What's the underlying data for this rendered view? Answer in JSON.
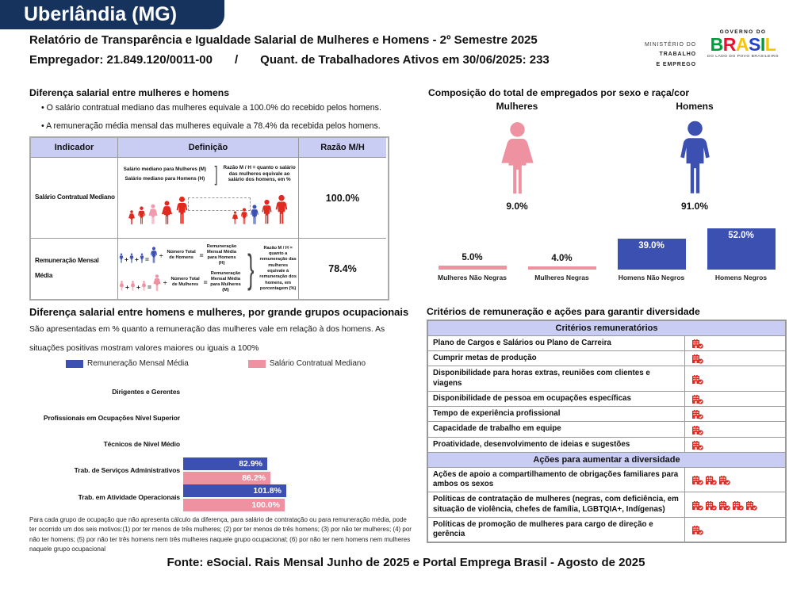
{
  "page": {
    "region_title": "Uberlândia (MG)",
    "report_title": "Relatório de Transparência e Igualdade Salarial de Mulheres e Homens - 2º Semestre 2025",
    "employer_line": "Empregador: 21.849.120/0011-00",
    "separator": "/",
    "workers_line": "Quant. de Trabalhadores Ativos em 30/06/2025: 233",
    "footer_source": "Fonte: eSocial. Rais Mensal Junho de 2025 e Portal Emprega Brasil - Agosto de 2025"
  },
  "logos": {
    "ministry_line1": "MINISTÉRIO DO",
    "ministry_line2": "TRABALHO",
    "ministry_line3": "E EMPREGO",
    "gov_top": "GOVERNO DO",
    "gov_name": "BRASIL",
    "gov_colors": [
      "#009c3b",
      "#e8112d",
      "#f7c600",
      "#2243c8",
      "#009c3b",
      "#f7c600"
    ],
    "gov_bottom": "DO LADO DO POVO BRASILEIRO"
  },
  "colors": {
    "navy": "#16335e",
    "lavender": "#c9cdf3",
    "blue": "#3c50b1",
    "pink": "#ee92a1",
    "pink_light": "#f19ab0",
    "red": "#e02a20"
  },
  "operators": {
    "plus": "+",
    "equals": "=",
    "divide": "÷"
  },
  "glyphs": {
    "bracket": "]",
    "brace": "}"
  },
  "salary_diff": {
    "title": "Diferença salarial entre mulheres e homens",
    "bullets": [
      "O salário contratual mediano das mulheres equivale a 100.0% do recebido pelos homens.",
      "A remuneração média mensal das mulheres equivale a 78.4% da recebida pelos homens."
    ],
    "table": {
      "headers": [
        "Indicador",
        "Definição",
        "Razão M/H"
      ],
      "rows": [
        {
          "indicator": "Salário Contratual Mediano",
          "ratio": "100.0%",
          "def_label_top": "Salário mediano para Mulheres (M)",
          "def_label_bottom": "Salário mediano para Homens (H)",
          "def_note": "Razão M / H = quanto o salário das mulheres equivale ao salário dos homens, em %"
        },
        {
          "indicator": "Remuneração Mensal Média",
          "ratio": "78.4%",
          "calcs": [
            {
              "icon": "man-icon",
              "color": "#3c50b1",
              "divide": "Número Total de Homens",
              "result": "Remuneração Mensal Média para Homens (H)"
            },
            {
              "icon": "woman-icon",
              "color": "#ee92a1",
              "divide": "Número Total de Mulheres",
              "result": "Remuneração Mensal Média para Mulheres (M)"
            }
          ],
          "def_note": "Razão M / H = quanto a remuneração das mulheres equivale à remuneração dos homens, em porcentagem (%)"
        }
      ]
    }
  },
  "composition": {
    "title": "Composição do total de empregados por sexo e raça/cor",
    "female_label": "Mulheres",
    "female_pct": "9.0%",
    "male_label": "Homens",
    "male_pct": "91.0%"
  },
  "occupational": {
    "title": "Diferença salarial entre homens e mulheres, por grande grupos ocupacionais",
    "subtitle": "São apresentadas em % quanto a remuneração das mulheres vale em relação à dos homens. As situações positivas mostram valores maiores ou iguais a 100%",
    "footnote": "Para cada grupo de ocupação que não apresenta cálculo da diferença, para salário de contratação ou para remuneração média, pode ter ocorrido um dos seis motivos:(1) por ter menos de três mulheres; (2) por ter menos de três homens; (3) por não ter mulheres; (4) por não ter homens; (5) por não ter três homens nem três mulheres naquele grupo ocupacional; (6) por não ter nem homens nem mulheres naquele grupo ocupacional"
  },
  "criteria": {
    "title": "Critérios de remuneração e ações para garantir diversidade",
    "sections": [
      {
        "header": "Critérios remuneratórios",
        "rows": [
          {
            "label": "Plano de Cargos e Salários ou Plano de Carreira",
            "icons": 1
          },
          {
            "label": "Cumprir metas de produção",
            "icons": 1
          },
          {
            "label": "Disponibilidade para horas extras, reuniões com clientes e viagens",
            "icons": 1
          },
          {
            "label": "Disponibilidade de pessoa em ocupações específicas",
            "icons": 1
          },
          {
            "label": "Tempo de experiência profissional",
            "icons": 1
          },
          {
            "label": "Capacidade de trabalho em equipe",
            "icons": 1
          },
          {
            "label": "Proatividade, desenvolvimento de ideias e sugestões",
            "icons": 1
          }
        ]
      },
      {
        "header": "Ações para aumentar a diversidade",
        "rows": [
          {
            "label": "Ações de apoio a compartilhamento de obrigações familiares para ambos os sexos",
            "icons": 3
          },
          {
            "label": "Políticas de contratação de mulheres (negras, com deficiência, em situação de violência, chefes de família, LGBTQIA+, Indígenas)",
            "icons": 5
          },
          {
            "label": "Políticas de promoção de mulheres para cargo de direção e gerência",
            "icons": 1
          }
        ]
      }
    ]
  },
  "chart_data": [
    {
      "type": "pictogram",
      "title": "Composição do total de empregados por sexo",
      "categories": [
        "Mulheres",
        "Homens"
      ],
      "values": [
        9.0,
        91.0
      ],
      "unit": "%"
    },
    {
      "type": "bar",
      "title": "Composição do total de empregados por sexo e raça/cor",
      "categories": [
        "Mulheres Não Negras",
        "Mulheres Negras",
        "Homens Não Negros",
        "Homens Negros"
      ],
      "values": [
        5.0,
        4.0,
        39.0,
        52.0
      ],
      "unit": "%",
      "colors": [
        "#ee92a1",
        "#ee92a1",
        "#3c50b1",
        "#3c50b1"
      ],
      "ylim": [
        0,
        60
      ],
      "grid": false
    },
    {
      "type": "bar",
      "orientation": "horizontal",
      "title": "Diferença salarial entre homens e mulheres, por grande grupos ocupacionais",
      "categories": [
        "Dirigentes e Gerentes",
        "Profissionais em Ocupações Nível Superior",
        "Técnicos de Nível Médio",
        "Trab. de Serviços Administrativos",
        "Trab. em Atividade Operacionais"
      ],
      "series": [
        {
          "name": "Remuneração Mensal Média",
          "color": "#3c50b1",
          "values": [
            null,
            null,
            null,
            82.9,
            101.8
          ]
        },
        {
          "name": "Salário Contratual Mediano",
          "color": "#ee92a1",
          "values": [
            null,
            null,
            null,
            86.2,
            100.0
          ]
        }
      ],
      "unit": "%",
      "xlim": [
        0,
        110
      ],
      "legend_position": "top"
    }
  ]
}
